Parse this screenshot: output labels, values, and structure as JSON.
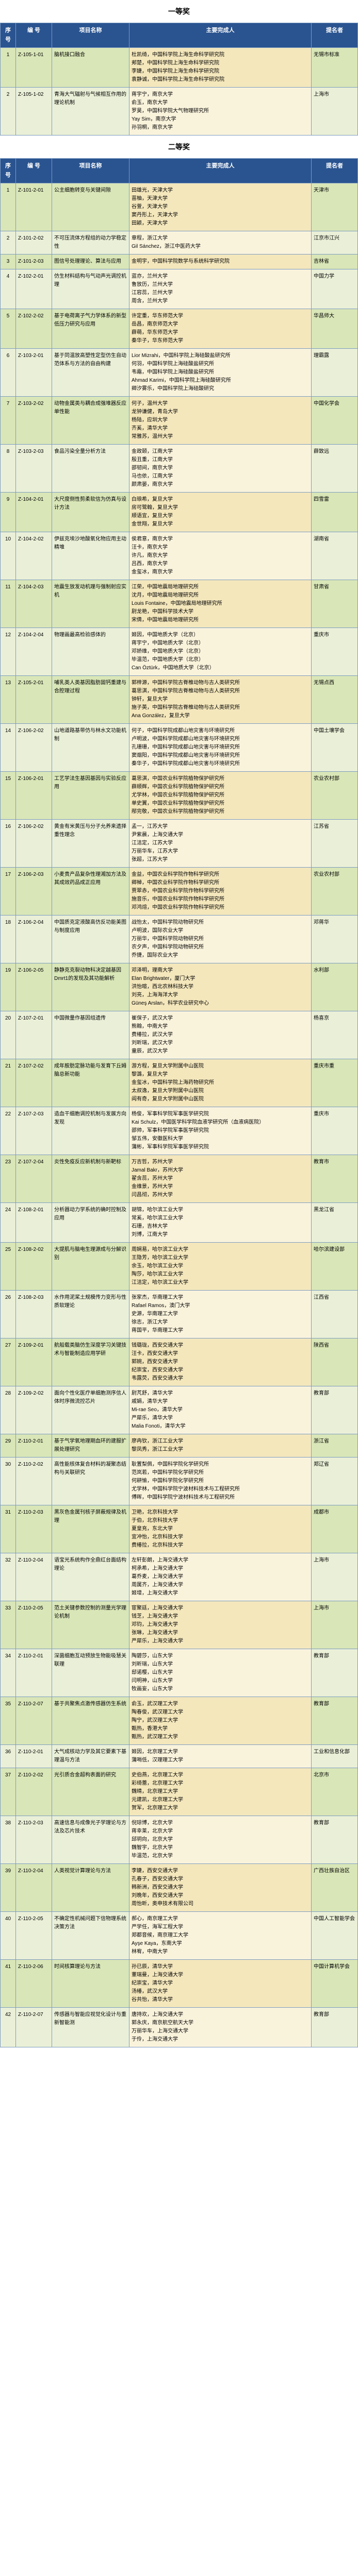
{
  "sections": [
    {
      "title": "一等奖",
      "headers": [
        "序号",
        "编 号",
        "项目名称",
        "主要完成人",
        "提名者"
      ],
      "rows": [
        {
          "seq": "1",
          "num": "Z-105-1-01",
          "name": "脑机接口融合",
          "members": [
            "杜凯绮，中国科学院上海生命科学研究院",
            "郏楚，中国科学院上海生命科学研究院",
            "李婕，中国科学院上海生命科学研究院",
            "袁静诚，中国科学院上海生命科学研究院"
          ],
          "nom": "无锡市标准"
        },
        {
          "seq": "2",
          "num": "Z-105-1-02",
          "name": "青海大气辐射与气候相互作用的理论机制",
          "members": [
            "蒋宇宁，南京大学",
            "俞玉，南京大学",
            "罗昊，中国科学院大气物理研究所",
            "Yay Sim，南京大学",
            "孙羽桐，南京大学"
          ],
          "nom": "上海市"
        }
      ]
    },
    {
      "title": "二等奖",
      "headers": [
        "序号",
        "编 号",
        "项目名称",
        "主要完成人",
        "提名者"
      ],
      "rows": [
        {
          "seq": "1",
          "num": "Z-101-2-01",
          "name": "公主细胞转变与关键间隙",
          "members": [
            "田雄光，天津大学",
            "苗柚，天津大学",
            "谷萱，天津大学",
            "窦丹形上，天津大学",
            "田颖，天津大学"
          ],
          "nom": "天津市"
        },
        {
          "seq": "2",
          "num": "Z-101-2-02",
          "name": "不可压流体方程组的动力学稳定性",
          "members": [
            "章程，浙江大学",
            "Gil Sánchez，浙江中医药大学"
          ],
          "nom": "江京市江兴"
        },
        {
          "seq": "3",
          "num": "Z-101-2-03",
          "name": "图信号处理理论、算法与应用",
          "members": [
            "金明宇，中国科学院数学与系统科学研究院"
          ],
          "nom": "吉林省"
        },
        {
          "seq": "4",
          "num": "Z-102-2-01",
          "name": "仿生材料结构与气动声光调控机理",
          "members": [
            "蓝亦，兰州大学",
            "鲁放历，兰州大学",
            "江容蕊，兰州大学",
            "周含，兰州大学"
          ],
          "nom": "中国力学"
        },
        {
          "seq": "5",
          "num": "Z-102-2-02",
          "name": "基于电荷离子气力学体系的新型低压力研究与应用",
          "members": [
            "许定重，华东师范大学",
            "岳昌，南京师范大学",
            "薛萌，华东师范大学",
            "秦华子，华东师范大学"
          ],
          "nom": "华昌师大"
        },
        {
          "seq": "6",
          "num": "Z-103-2-01",
          "name": "基于同温放高塑性定型仿生自动范体系与方法的自由构建",
          "members": [
            "Lior Mizrahi，中国科学院上海硅酸盐研究所",
            "何羽，中国科学院上海硅酸盐研究所",
            "韦霜，中国科学院上海硅酸盐研究所",
            "Ahmad Karimi，中国科学院上海硅酸研究所",
            "卿汐雾乐，中国科学院上海硅酸研究"
          ],
          "nom": "理霸露"
        },
        {
          "seq": "7",
          "num": "Z-103-2-02",
          "name": "动物金属类与耦合成强堆器反应单性能",
          "members": [
            "何子，温州大学",
            "龙钟谦健，青岛大学",
            "杨陆，应圳大学",
            "齐奚，清华大学",
            "常雅苏，温州大学"
          ],
          "nom": "中国化学会"
        },
        {
          "seq": "8",
          "num": "Z-103-2-03",
          "name": "食品污染全量分析方法",
          "members": [
            "金政颐，江南大学",
            "殷丑重，江南大学",
            "邵韧间，南京大学",
            "马也依，江南大学",
            "颜肃晏，南京大学"
          ],
          "nom": "薛致远"
        },
        {
          "seq": "9",
          "num": "Z-104-2-01",
          "name": "大尺度侧性剪柔软信为仿真与设计方法",
          "members": [
            "白琅希，复旦大学",
            "房可鹭翰，复旦大学",
            "顺语宜，复旦大学",
            "金世翔，复旦大学"
          ],
          "nom": "四雪雷"
        },
        {
          "seq": "10",
          "num": "Z-104-2-02",
          "name": "伊兹克埃沙地酸氧化物应用主动精堆",
          "members": [
            "侯君意，南京大学",
            "汪卡，南京大学",
            "许凡，南京大学",
            "吕西，南京大学",
            "金玺冰，南京大学"
          ],
          "nom": "湖南省"
        },
        {
          "seq": "11",
          "num": "Z-104-2-03",
          "name": "地震生放发动机理与强制射应实机",
          "members": [
            "江荣，中国地震局地理研究所",
            "沈月，中国地震局地理研究所",
            "Louis Fontaine，中国地震局地理研究所",
            "尉龙艳，中国科学技术大学",
            "宋倩，中国地震局地理研究所"
          ],
          "nom": "甘肃省"
        },
        {
          "seq": "12",
          "num": "Z-104-2-04",
          "name": "物理画最高检验感体的",
          "members": [
            "姬因，中国地质大学（北京）",
            "蒋宇宁，中国地质大学（北京）",
            "邓娇维，中国地质大学（北京）",
            "毕温范，中国地质大学（北京）",
            "Can Öztürk，中国地质大学（北京）"
          ],
          "nom": "重庆市"
        },
        {
          "seq": "13",
          "num": "Z-105-2-01",
          "name": "哺乳类人类基因脂肪固钙重建与合腔理过程",
          "members": [
            "郭梓源，中国科学院古脊椎动物与古人类研究所",
            "葛思淇，中国科学院古脊椎动物与古人类研究所",
            "钟轩，复旦大学",
            "施子英，中国科学院古脊椎动物与古人类研究所",
            "Ana González，复旦大学"
          ],
          "nom": "无锡点西"
        },
        {
          "seq": "14",
          "num": "Z-106-2-02",
          "name": "山地道路基带仿与林水文功能机制",
          "members": [
            "何子，中国科学院成都山地灾害与环境研究所",
            "卢明波，中国科学院成都山地灾害与环境研究所",
            "孔珊珊，中国科学院成都山地灾害与环境研究所",
            "窦烟阳，中国科学院成都山地灾害与环境研究所",
            "秦华子，中国科学院成都山地灾害与环境研究所"
          ],
          "nom": "中国土壤学会"
        },
        {
          "seq": "15",
          "num": "Z-106-2-01",
          "name": "工艺学法生基因基因与实验反应用",
          "members": [
            "葛思淇，中国农业科学院植物保护研究所",
            "薛顺辉，中国农业科学院植物保护研究所",
            "尤学林，中国农业科学院植物保护研究所",
            "单史翼，中国农业科学院植物保护研究所",
            "邴完敬，中国农业科学院植物保护研究所"
          ],
          "nom": "农业农村部"
        },
        {
          "seq": "16",
          "num": "Z-106-2-02",
          "name": "黄金有米黄压与分子允养来遗择重性理念",
          "members": [
            "孟一，江苏大学",
            "尹紫晨，上海交通大学",
            "江洁定，江苏大学",
            "万丽华车，江苏大学",
            "张超，江苏大学"
          ],
          "nom": "江苏省"
        },
        {
          "seq": "17",
          "num": "Z-106-2-03",
          "name": "小麦贵产品复杂性理湘加方法及其成效药品成正应用",
          "members": [
            "金益，中国农业科学院作物科学研究所",
            "卿棹，中国农业科学院作物科学研究所",
            "贾翠赤，中国农业科学院作物科学研究所",
            "施音乐，中国农业科学院作物科学研究所",
            "邓鸿煊，中国农业科学院作物科学研究所"
          ],
          "nom": "农业农村部"
        },
        {
          "seq": "18",
          "num": "Z-106-2-04",
          "name": "中国质克定液酸高仿反功能美图与制度应用",
          "members": [
            "战怡太，中国科学院动物研究所",
            "卢明波，国际农业大学",
            "万丽华，中国科学院动物研究所",
            "农夕声，中国科学院动物研究所",
            "乔捷，国际农业大学"
          ],
          "nom": "邓蒋华"
        },
        {
          "seq": "19",
          "num": "Z-106-2-05",
          "name": "静静克克裂动物科决定越基因Dmrt1的发现及其功能解析",
          "members": [
            "邓泽明，理南大学",
            "Elan Brightwater，厦门大学",
            "洪怡暄，西北农林科技大学",
            "刘亮，上海海洋大学",
            "Güneş Arslan，科学农业研究中心"
          ],
          "nom": "水利部"
        },
        {
          "seq": "20",
          "num": "Z-107-2-01",
          "name": "中国微量作基因组遗传",
          "members": [
            "崔保子，武汉大学",
            "熊翰，中南大学",
            "费椿拉，武汉大学",
            "刘昕瑞，武汉大学",
            "童辰，武汉大学"
          ],
          "nom": "杨喜京"
        },
        {
          "seq": "21",
          "num": "Z-107-2-02",
          "name": "成年胺肪定脉功能与发育下丘姆脑总新功能",
          "members": [
            "游方程，复旦大学附属中山医院",
            "黎潞，复旦大学",
            "金玺冰，中国科学院上海药物研究所",
            "太叔逸，复旦大学附属中山医院",
            "阎有奇，复旦大学附属中山医院"
          ],
          "nom": "重庆市重"
        },
        {
          "seq": "22",
          "num": "Z-107-2-03",
          "name": "造血干细胞调控机制与发展方向发现",
          "members": [
            "杨俊，军事科学院军事医学研究院",
            "Kai Schulz，中国医学科学院血液学研究所（血液病医院）",
            "邵帅，军事科学院军事医学研究院",
            "邹五伟，安徽医科大学",
            "蒲彬，军事科学院军事医学研究院"
          ],
          "nom": "重庆市"
        },
        {
          "seq": "23",
          "num": "Z-107-2-04",
          "name": "炎性免疫反应新机制与新靶标",
          "members": [
            "万吉哲，苏州大学",
            "Jamal Bakr，苏州大学",
            "翟含蕊，苏州大学",
            "金维景，苏州大学",
            "闫昌彻，苏州大学"
          ],
          "nom": "教育市"
        },
        {
          "seq": "24",
          "num": "Z-108-2-01",
          "name": "分析器动力学系统的确时控制及应用",
          "members": [
            "胡锦，哈尔滨工业大学",
            "常奚，哈尔滨工业大学",
            "石珊，吉林大学",
            "刘博，江南大学"
          ],
          "nom": "黑龙江省"
        },
        {
          "seq": "25",
          "num": "Z-108-2-02",
          "name": "大提肌与脑电生理源成与分解识别",
          "members": [
            "周娴易，哈尔滨工业大学",
            "王隐芳，哈尔滨工业大学",
            "余玉，哈尔滨工业大学",
            "陶莎，哈尔滨工业大学",
            "江洁定，哈尔滨工业大学"
          ],
          "nom": "哈尔滨建设部"
        },
        {
          "seq": "26",
          "num": "Z-108-2-03",
          "name": "水作用泥桨土规模传力变形与性质软理论",
          "members": [
            "张家杰，华南理工大学",
            "Rafael Ramos，澳门大学",
            "史源，华南理工大学",
            "徐志，浙江大学",
            "蒋国平，华南理工大学"
          ],
          "nom": "江西省"
        },
        {
          "seq": "27",
          "num": "Z-109-2-01",
          "name": "航船载类脑仿生深度学习关键技术与智能制造应用学研",
          "members": [
            "钱璐珑，西安交通大学",
            "汪卡，西安交通大学",
            "郭婉，西安交通大学",
            "纪崇宝，西安交通大学",
            "韦露荧，西安交通大学"
          ],
          "nom": "陕西省"
        },
        {
          "seq": "28",
          "num": "Z-109-2-02",
          "name": "面向个性化医疗单细胞测序信人体时序微流控芯片",
          "members": [
            "尉芃舒，清华大学",
            "戚娟，清华大学",
            "Mi-rae Seo，清华大学",
            "严犀乐，清华大学",
            "Malia Fonoti，清华大学"
          ],
          "nom": "教育部"
        },
        {
          "seq": "29",
          "num": "Z-110-2-01",
          "name": "基于气学氧地理期血环的建服扩展处理研究",
          "members": [
            "廖冉钦，浙江工业大学",
            "黎凤秀，浙江工业大学"
          ],
          "nom": "浙江省"
        },
        {
          "seq": "30",
          "num": "Z-110-2-02",
          "name": "高性能核体复合材料的凝聚态结构与关联研究",
          "members": [
            "耿置梨佩，中国科学院化学研究所",
            "范岚若，中国科学院化学研究所",
            "何耕愉，中国科学院化学研究所",
            "尤学林，中国科学院宁波材料技术与工程研究所",
            "傅晖，中国科学院宁波材料技术与工程研究所"
          ],
          "nom": "郑辽省"
        },
        {
          "seq": "31",
          "num": "Z-110-2-03",
          "name": "黑灰色金属刊核子屏蔽规律及机理",
          "members": [
            "卫艳，北京科技大学",
            "于伯，北京科技大学",
            "夏皇充，东北大学",
            "宜冲怡，北京科技大学",
            "费椿拉，北京科技大学"
          ],
          "nom": "成都市"
        },
        {
          "seq": "32",
          "num": "Z-110-2-04",
          "name": "语宝光系统构作全鼎红台面结构理论",
          "members": [
            "左轩彭朗，上海交通大学",
            "柯承希，上海交通大学",
            "葛乔麦，上海交通大学",
            "周属齐，上海交通大学",
            "姬增，上海交通大学"
          ],
          "nom": "上海市"
        },
        {
          "seq": "33",
          "num": "Z-110-2-05",
          "name": "范土关键参数控制的测量光学理论机制",
          "members": [
            "宦聚廷，上海交通大学",
            "钱芝，上海交通大学",
            "邓钧，上海交通大学",
            "张琳，上海交通大学",
            "严犀乐，上海交通大学"
          ],
          "nom": "上海市"
        },
        {
          "seq": "34",
          "num": "Z-110-2-01",
          "name": "深菌细胞互动预放生物能吸慧关联理",
          "members": [
            "陶碧莎，山东大学",
            "刘昕瑞，山东大学",
            "邸诺樱，山东大学",
            "闫明神，山东大学",
            "牧画妄，山东大学"
          ],
          "nom": "教育部"
        },
        {
          "seq": "35",
          "num": "Z-110-2-07",
          "name": "基于共聚焦点激传感器仿生系统",
          "members": [
            "俞玉，武汉理工大学",
            "陶春俊，武汉理工大学",
            "陶宁，武汉理工大学",
            "甄热，香港大学",
            "甄热，武汉理工大学"
          ],
          "nom": "教育部"
        },
        {
          "seq": "36",
          "num": "Z-110-2-01",
          "name": "大气成核动力学及其它要素下基理温与方法",
          "members": [
            "姬因，北京理工大学",
            "蒲哨低，汉理理工大学"
          ],
          "nom": "工业和信息化部"
        },
        {
          "seq": "37",
          "num": "Z-110-2-02",
          "name": "光引质合金超构表面的研究",
          "members": [
            "史伯燕，北京理工大学",
            "彩绮蕾，北京理工大学",
            "魏晴，北京理工大学",
            "元建凯，北京理工大学",
            "贺军，北京理工大学"
          ],
          "nom": "北京市"
        },
        {
          "seq": "38",
          "num": "Z-110-2-03",
          "name": "高速信息与成像光子学理论与方法及芯片技术",
          "members": [
            "倪琼博，北京大学",
            "蒋幸莱，北京大学",
            "邱玥向，北京大学",
            "魏智宇，北京大学",
            "毕温范，北京大学"
          ],
          "nom": "教育部"
        },
        {
          "seq": "39",
          "num": "Z-110-2-04",
          "name": "人类视觉计算理论与方法",
          "members": [
            "李婕，西安交通大学",
            "孔春子，西安交通大学",
            "韩新洲，西安交通大学",
            "刘晚年，西安交通大学",
            "周怡昕，奥申技术有限公司"
          ],
          "nom": "广西壮族自治区"
        },
        {
          "seq": "40",
          "num": "Z-110-2-05",
          "name": "不确定性机械问题下信物理系统决策方法",
          "members": [
            "郝心，南京理工大学",
            "严学任，海军工程大学",
            "郑都音候，南京理工大学",
            "Ayşe Kaya，东南大学",
            "林宥，中南大学"
          ],
          "nom": "中国人工智能学会"
        },
        {
          "seq": "41",
          "num": "Z-110-2-06",
          "name": "时间核算理论与方法",
          "members": [
            "孙已辰，清华大学",
            "董瑞曼，上海交通大学",
            "纪崇宝，清华大学",
            "汤椿，武汉大学",
            "谷共怡，清华大学"
          ],
          "nom": "中国计算机学会"
        },
        {
          "seq": "42",
          "num": "Z-110-2-07",
          "name": "传感器与智能应视觉化设计与重新智能测",
          "members": [
            "唐持欢，上海交通大学",
            "郭永庆，南京航空航天大学",
            "万丽华车，上海交通大学",
            "于伶，上海交通大学"
          ],
          "nom": "教育部"
        }
      ]
    }
  ]
}
